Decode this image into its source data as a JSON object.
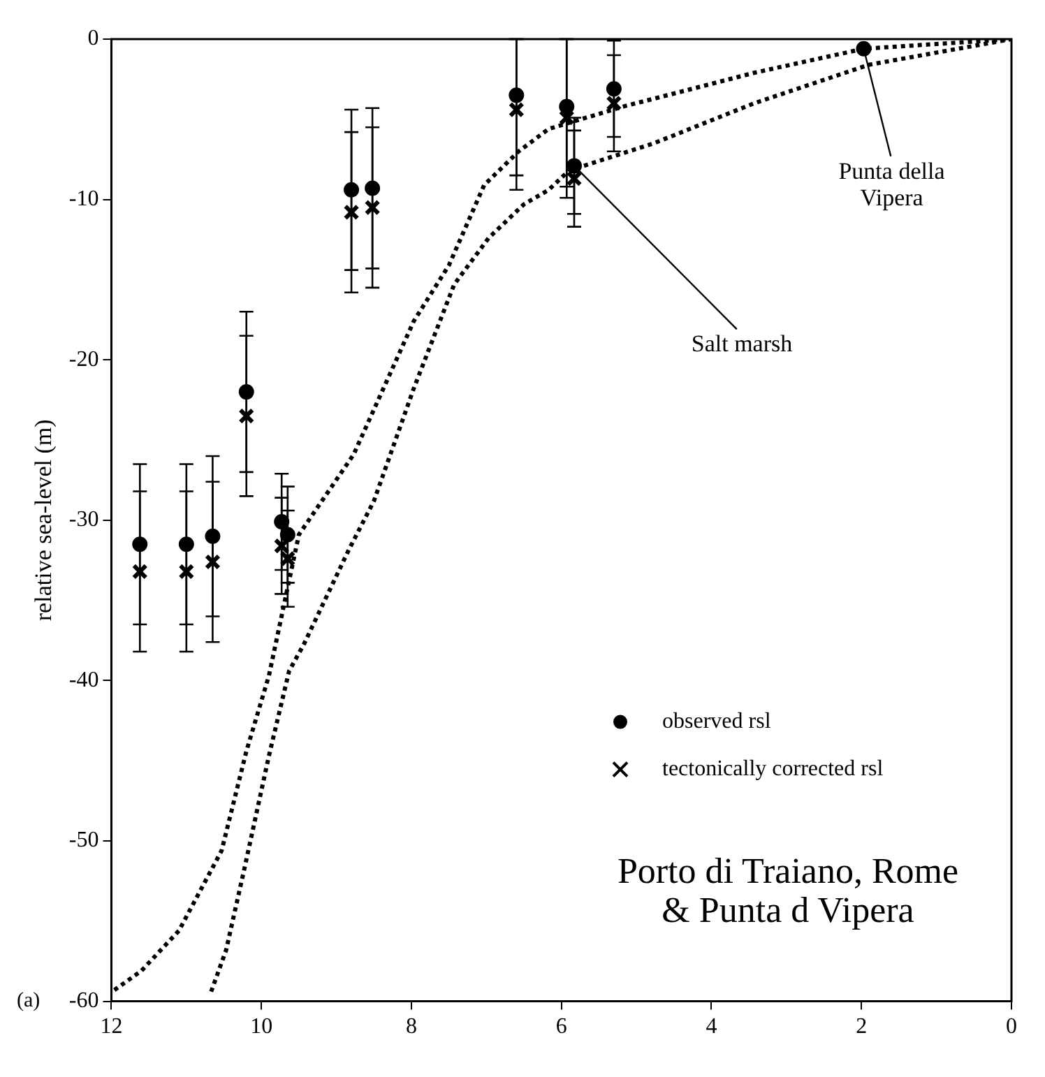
{
  "chart_data": {
    "type": "scatter",
    "title": "Porto di Traiano, Rome\n& Punta d Vipera",
    "ylabel": "relative sea-level (m)",
    "xlim": [
      12,
      0
    ],
    "xticks": [
      12,
      10,
      8,
      6,
      4,
      2,
      0
    ],
    "ylim": [
      -60,
      0
    ],
    "yticks": [
      -60,
      -50,
      -40,
      -30,
      -20,
      -10,
      0
    ],
    "grid": false,
    "legend": "bottom right",
    "annotations": [
      {
        "text": "Punta della Vipera",
        "x": 1.97,
        "y": -0.6
      },
      {
        "text": "Salt marsh",
        "x": 5.83,
        "y": -7.9
      },
      "(a)"
    ],
    "series": [
      {
        "name": "observed rsl",
        "color": "#000000",
        "marker": "circle",
        "x": [
          11.62,
          11.0,
          10.65,
          10.2,
          9.73,
          9.65,
          8.8,
          8.52,
          6.6,
          5.93,
          5.83,
          5.3,
          1.97
        ],
        "values": [
          -31.5,
          -31.5,
          -31.0,
          -22.0,
          -30.1,
          -30.9,
          -9.4,
          -9.3,
          -3.5,
          -4.2,
          -7.9,
          -3.1,
          -0.6
        ],
        "errors": [
          5,
          5,
          5,
          5,
          3,
          3,
          5,
          5,
          [
            -8.5,
            0
          ],
          [
            -9.2,
            0
          ],
          3,
          3,
          null
        ]
      },
      {
        "name": "tectonically corrected rsl",
        "color": "#000000",
        "marker": "cross",
        "x": [
          11.62,
          11.0,
          10.65,
          10.2,
          9.73,
          9.65,
          8.8,
          8.52,
          6.6,
          5.93,
          5.83,
          5.3
        ],
        "values": [
          -33.2,
          -33.2,
          -32.6,
          -23.5,
          -31.6,
          -32.4,
          -10.8,
          -10.5,
          -4.4,
          -4.9,
          -8.7,
          -4.0
        ],
        "errors": [
          5,
          5,
          5,
          5,
          3,
          3,
          5,
          5,
          [
            -9.4,
            0
          ],
          [
            -9.9,
            0
          ],
          3,
          3
        ]
      },
      {
        "type": "line",
        "color": "#000000",
        "marker": "none",
        "line_style": "dotted",
        "x": [
          11.96,
          11.6,
          11.1,
          10.53,
          10.2,
          9.9,
          9.7,
          9.5,
          8.77,
          7.97,
          7.5,
          7.03,
          6.57,
          6.17,
          5.17,
          3.43,
          1.97,
          0
        ],
        "values": [
          -59.3,
          -58.1,
          -55.6,
          -50.6,
          -44.4,
          -39.7,
          -35.3,
          -30.9,
          -25.9,
          -17.6,
          -14.1,
          -9.1,
          -7.0,
          -5.6,
          -4.2,
          -2.1,
          -0.6,
          0
        ]
      },
      {
        "type": "line",
        "color": "#000000",
        "marker": "none",
        "line_style": "dotted",
        "x": [
          10.67,
          10.47,
          10.23,
          9.9,
          9.63,
          9.43,
          8.83,
          8.5,
          7.97,
          7.43,
          6.97,
          6.5,
          6.17,
          5.9,
          4.77,
          3.43,
          1.9,
          0
        ],
        "values": [
          -59.4,
          -56.8,
          -51.8,
          -44.7,
          -39.4,
          -37.7,
          -31.8,
          -28.8,
          -21.8,
          -15.3,
          -12.4,
          -10.3,
          -9.4,
          -8.2,
          -6.5,
          -4.0,
          -1.6,
          0
        ]
      }
    ]
  }
}
